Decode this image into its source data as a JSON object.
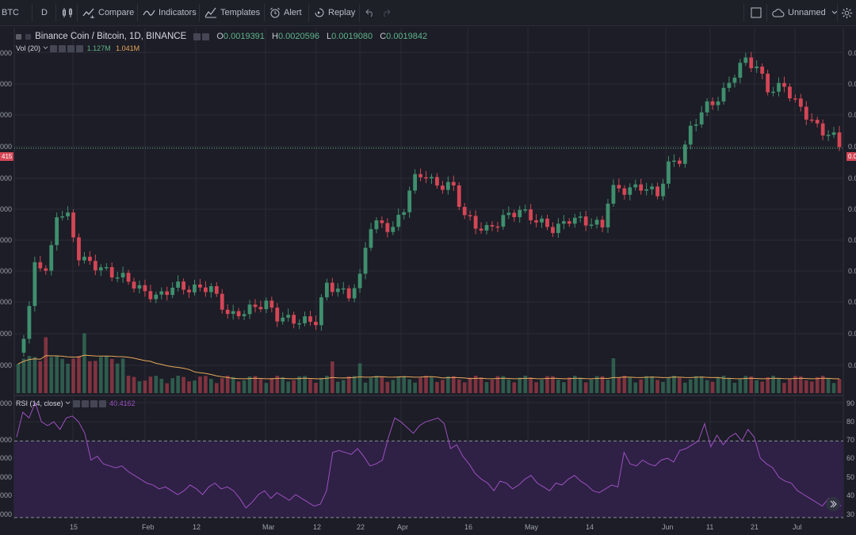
{
  "toolbar": {
    "symbol": "BTC",
    "interval": "D",
    "compare": "Compare",
    "indicators": "Indicators",
    "templates": "Templates",
    "alert": "Alert",
    "replay": "Replay",
    "layout_name": "Unnamed"
  },
  "legend": {
    "title": "Binance Coin / Bitcoin, 1D, BINANCE",
    "open_label": "O",
    "open": "0.0019391",
    "high_label": "H",
    "high": "0.0020596",
    "low_label": "L",
    "low": "0.0019080",
    "close_label": "C",
    "close": "0.0019842",
    "vol_title": "Vol (20)",
    "vol_value": "1.127M",
    "vol_ma": "1.041M",
    "rsi_title": "RSI (14, close)",
    "rsi_value": "40.4162"
  },
  "left_axis": [
    "000",
    "000",
    "000",
    "000",
    "000",
    "000",
    "000",
    "000",
    "000",
    "000",
    "000",
    "000"
  ],
  "right_axis": [
    "0.0",
    "0.0",
    "0.0",
    "0.0",
    "0.0",
    "0.0",
    "0.0",
    "0.0",
    "0.0",
    "0.0",
    "0.0"
  ],
  "rsi_right_axis": [
    "90",
    "80",
    "70",
    "60",
    "50",
    "40",
    "30"
  ],
  "rsi_left_axis": [
    "000",
    "000",
    "000",
    "000",
    "000",
    "000",
    "000"
  ],
  "current_price_left": "415",
  "current_price_right": "0.0",
  "time_axis": [
    "15",
    "Feb",
    "12",
    "Mar",
    "12",
    "22",
    "Apr",
    "16",
    "May",
    "14",
    "Jun",
    "11",
    "21",
    "Jul"
  ],
  "colors": {
    "background": "#1c1d26",
    "up": "#3f8f6e",
    "down": "#d44656",
    "rsi_line": "#9d4fc0",
    "rsi_band": "#2e2145",
    "vol_ma": "#e8a85a"
  },
  "chart_data": {
    "type": "candlestick",
    "rsi_range": [
      30,
      90
    ],
    "rsi_bands": [
      70,
      30
    ],
    "rsi": [
      72,
      85,
      82,
      90,
      80,
      78,
      80,
      76,
      82,
      83,
      80,
      74,
      60,
      62,
      58,
      57,
      56,
      57,
      54,
      52,
      50,
      48,
      47,
      45,
      46,
      44,
      42,
      44,
      47,
      45,
      42,
      46,
      48,
      45,
      46,
      44,
      40,
      35,
      38,
      42,
      44,
      40,
      43,
      41,
      39,
      42,
      40,
      38,
      36,
      37,
      44,
      64,
      65,
      64,
      63,
      66,
      62,
      57,
      58,
      60,
      72,
      82,
      80,
      77,
      74,
      78,
      80,
      81,
      82,
      79,
      66,
      68,
      62,
      58,
      53,
      50,
      48,
      44,
      49,
      48,
      45,
      47,
      50,
      52,
      48,
      46,
      44,
      48,
      47,
      50,
      52,
      49,
      47,
      44,
      43,
      45,
      47,
      46,
      64,
      58,
      57,
      60,
      58,
      57,
      60,
      61,
      59,
      65,
      66,
      68,
      70,
      79,
      67,
      73,
      68,
      72,
      74,
      70,
      76,
      72,
      61,
      58,
      56,
      51,
      49,
      48,
      44,
      42,
      40,
      38,
      36,
      40,
      39,
      36
    ]
  }
}
